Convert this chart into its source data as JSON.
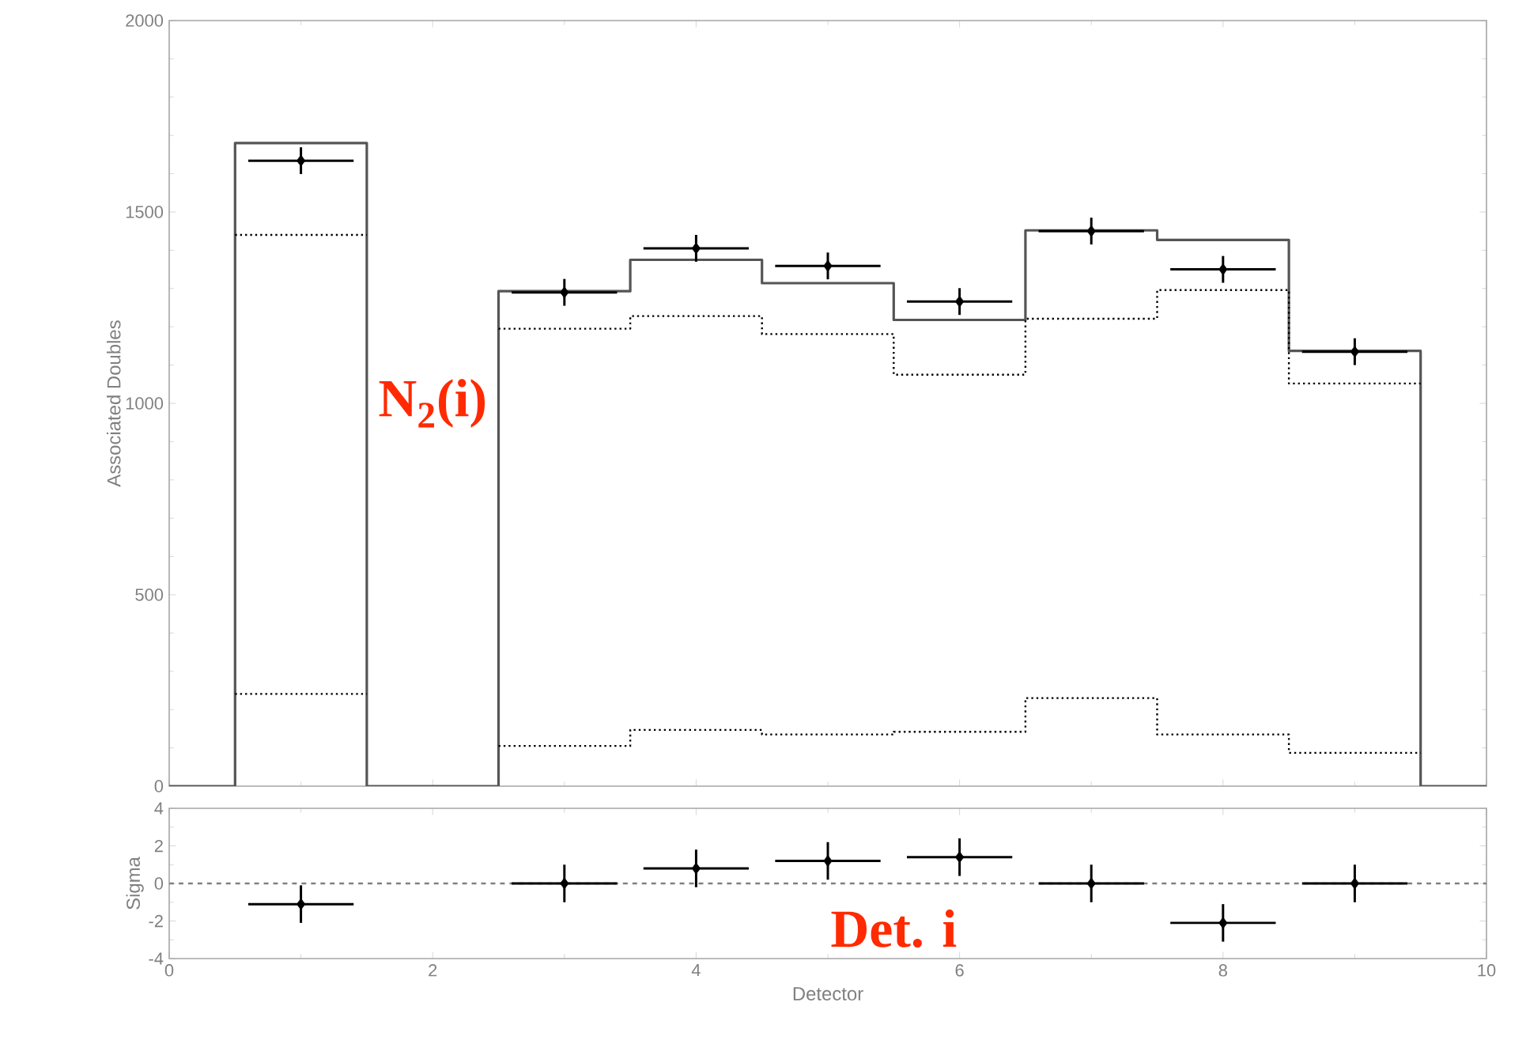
{
  "chart_data": [
    {
      "type": "step",
      "ylabel": "Associated Doubles",
      "xlim": [
        0,
        10
      ],
      "xticks": [
        0,
        2,
        4,
        6,
        8,
        10
      ],
      "ylim": [
        0,
        2000
      ],
      "yticks": [
        0,
        500,
        1000,
        1500,
        2000
      ],
      "tick_labels": "y",
      "annotations": [
        "N$_{2}$(i)"
      ],
      "series": [
        {
          "type": "step",
          "color": "#555555",
          "line_style": "solid",
          "x": [
            0,
            1,
            2,
            3,
            4,
            5,
            6,
            7,
            8,
            9,
            10
          ],
          "values": [
            0,
            1680,
            0,
            1293,
            1375,
            1314,
            1218,
            1452,
            1427,
            1137,
            0
          ]
        },
        {
          "type": "line",
          "color": "#000000",
          "line_style": "dotted",
          "x": [
            0.5,
            1.5,
            2,
            2.5,
            3.5,
            3.5,
            4.5,
            4.5,
            5.5,
            5.5,
            6.5,
            6.5,
            7.5,
            7.5,
            8.5,
            8.5,
            9.5
          ],
          "values": [
            1440,
            1440,
            null,
            1195,
            1195,
            1228,
            1228,
            1181,
            1181,
            1075,
            1075,
            1221,
            1221,
            1296,
            1296,
            1052,
            1052
          ]
        },
        {
          "type": "line",
          "color": "#000000",
          "line_style": "dotted",
          "x": [
            0.5,
            1.5,
            2,
            2.5,
            3.5,
            3.5,
            4.5,
            4.5,
            5.5,
            5.5,
            6.5,
            6.5,
            7.5,
            7.5,
            8.5,
            8.5,
            9.5
          ],
          "values": [
            241,
            241,
            null,
            105,
            105,
            147,
            147,
            135,
            135,
            142,
            142,
            230,
            230,
            135,
            135,
            87,
            87
          ]
        },
        {
          "type": "scatter",
          "color": "#000000",
          "marker": "diamond",
          "x": [
            1,
            3,
            4,
            5,
            6,
            7,
            8,
            9
          ],
          "values": [
            1634,
            1290,
            1405,
            1359,
            1266,
            1450,
            1350,
            1135
          ],
          "errors": [
            35,
            35,
            35,
            35,
            35,
            35,
            35,
            35
          ],
          "xerrors": [
            0.4,
            0.4,
            0.4,
            0.4,
            0.4,
            0.4,
            0.4,
            0.4
          ]
        }
      ]
    },
    {
      "type": "scatter",
      "xlabel": "Detector",
      "ylabel": "Sigma",
      "xlim": [
        0,
        10
      ],
      "xticks": [
        0,
        2,
        4,
        6,
        8,
        10
      ],
      "ylim": [
        -4,
        4
      ],
      "yticks": [
        -4,
        -2,
        0,
        2,
        4
      ],
      "marker": "diamond",
      "annotations": [
        "Det. i"
      ],
      "ref_lines": [
        {
          "axis": "y",
          "value": 0,
          "color": "#808080",
          "line_style": "dashed"
        }
      ],
      "series": [
        {
          "color": "#000000",
          "x": [
            1,
            3,
            4,
            5,
            6,
            7,
            8,
            9
          ],
          "values": [
            -1.1,
            0,
            0.8,
            1.2,
            1.4,
            0,
            -2.1,
            0
          ],
          "errors": [
            1,
            1,
            1,
            1,
            1,
            1,
            1,
            1
          ],
          "xerrors": [
            0.4,
            0.4,
            0.4,
            0.4,
            0.4,
            0.4,
            0.4,
            0.4
          ]
        }
      ]
    }
  ]
}
